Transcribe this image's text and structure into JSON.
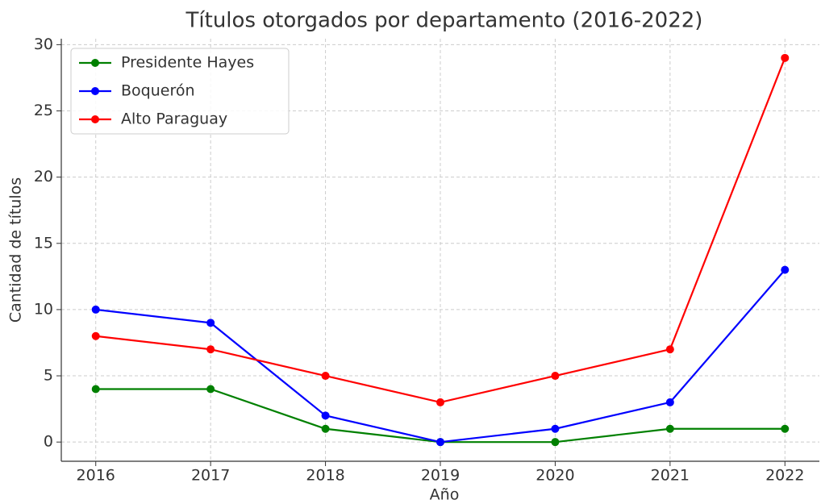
{
  "chart_data": {
    "type": "line",
    "title": "Títulos otorgados por departamento (2016-2022)",
    "xlabel": "Año",
    "ylabel": "Cantidad de títulos",
    "x": [
      2016,
      2017,
      2018,
      2019,
      2020,
      2021,
      2022
    ],
    "series": [
      {
        "name": "Presidente Hayes",
        "color": "#008000",
        "values": [
          4,
          4,
          1,
          0,
          0,
          1,
          1
        ]
      },
      {
        "name": "Boquerón",
        "color": "#0000ff",
        "values": [
          10,
          9,
          2,
          0,
          1,
          3,
          13
        ]
      },
      {
        "name": "Alto Paraguay",
        "color": "#ff0000",
        "values": [
          8,
          7,
          5,
          3,
          5,
          7,
          29
        ]
      }
    ],
    "xlim": [
      2015.7,
      2022.3
    ],
    "xticks": [
      2016,
      2017,
      2018,
      2019,
      2020,
      2021,
      2022
    ],
    "ylim": [
      -1.45,
      30.45
    ],
    "yticks": [
      0,
      5,
      10,
      15,
      20,
      25,
      30
    ],
    "grid": true,
    "legend": "upper left"
  }
}
